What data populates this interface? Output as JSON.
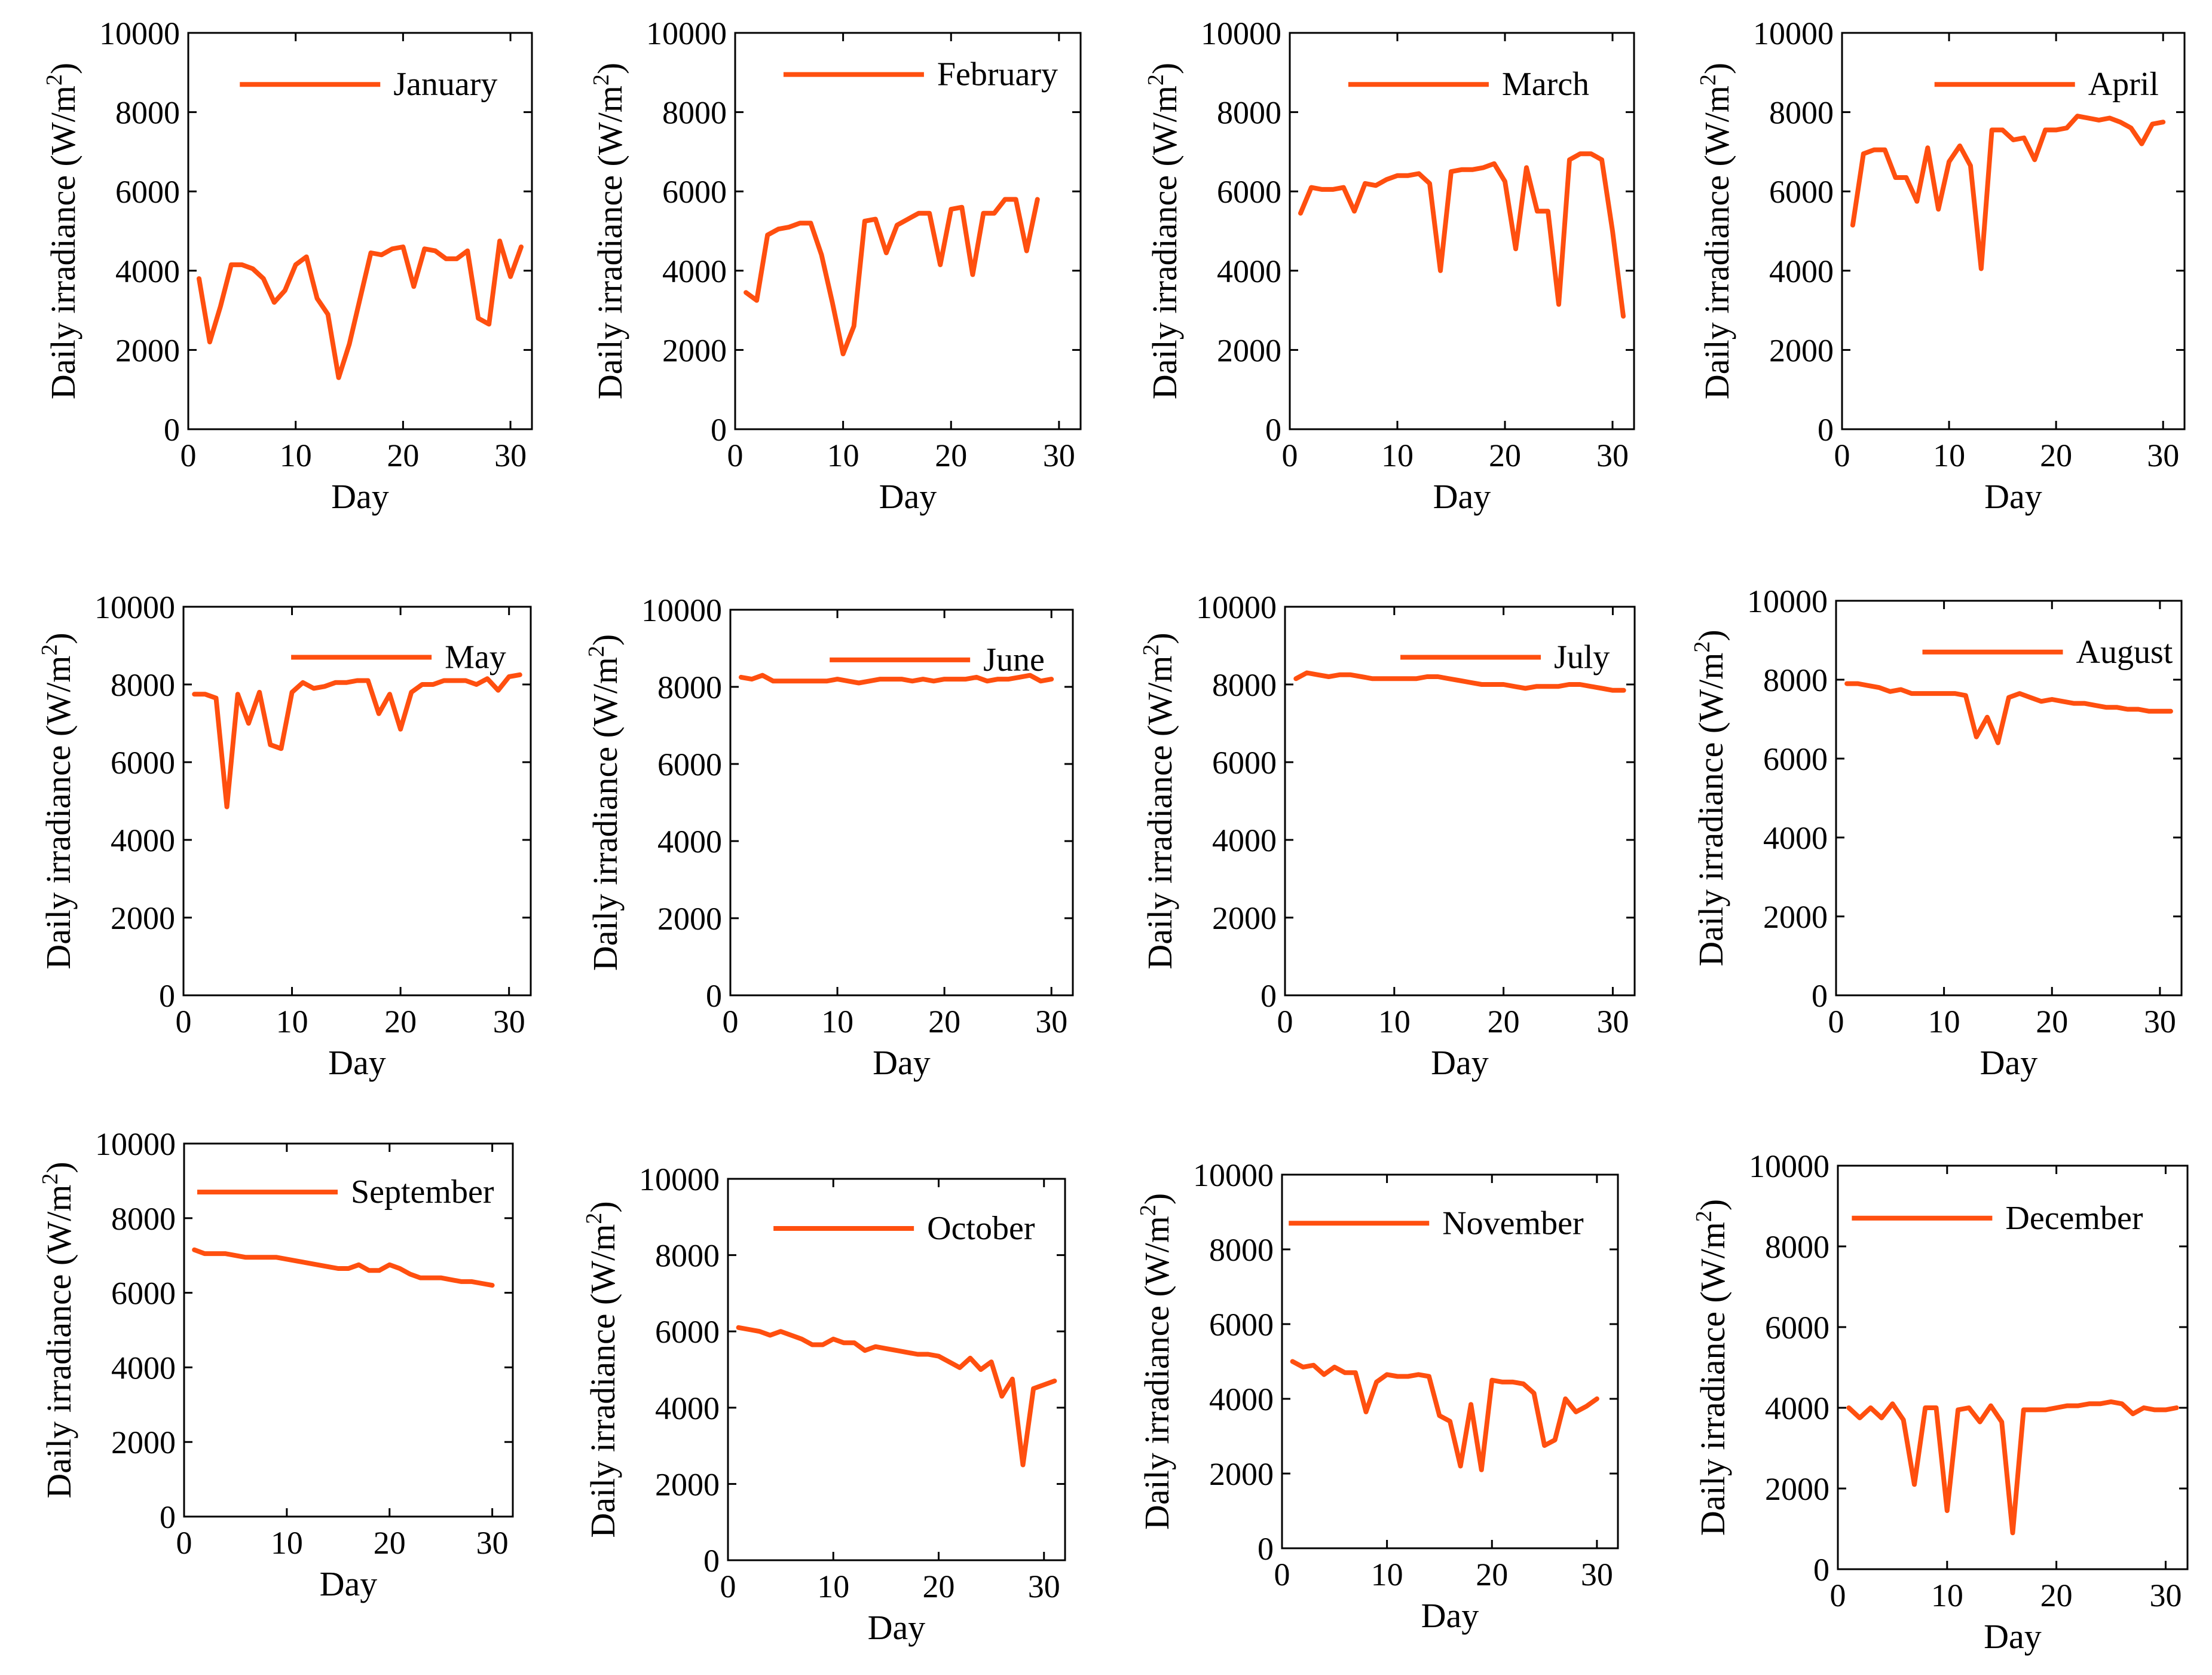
{
  "colors": {
    "series": "#ff4f0f",
    "axis": "#000000"
  },
  "chart_data": [
    {
      "type": "line",
      "title": "",
      "legend": "January",
      "xlabel": "Day",
      "ylabel": "Daily irradiance (W/m",
      "ylabel_sup": "2",
      "ylabel_close": ")",
      "xlim": [
        0,
        32
      ],
      "ylim": [
        0,
        10000
      ],
      "xticks": [
        0,
        10,
        20,
        30
      ],
      "yticks": [
        0,
        2000,
        4000,
        6000,
        8000,
        10000
      ],
      "x": [
        1,
        2,
        3,
        4,
        5,
        6,
        7,
        8,
        9,
        10,
        11,
        12,
        13,
        14,
        15,
        16,
        17,
        18,
        19,
        20,
        21,
        22,
        23,
        24,
        25,
        26,
        27,
        28,
        29,
        30,
        31
      ],
      "y": [
        3800,
        2200,
        3100,
        4150,
        4150,
        4050,
        3800,
        3200,
        3500,
        4150,
        4350,
        3300,
        2900,
        1300,
        2150,
        3300,
        4450,
        4400,
        4550,
        4600,
        3600,
        4550,
        4500,
        4300,
        4300,
        4500,
        2800,
        2650,
        4750,
        3850,
        4600
      ]
    },
    {
      "type": "line",
      "title": "",
      "legend": "February",
      "xlabel": "Day",
      "ylabel": "Daily irradiance (W/m",
      "ylabel_sup": "2",
      "ylabel_close": ")",
      "xlim": [
        0,
        32
      ],
      "ylim": [
        0,
        10000
      ],
      "xticks": [
        0,
        10,
        20,
        30
      ],
      "yticks": [
        0,
        2000,
        4000,
        6000,
        8000,
        10000
      ],
      "x": [
        1,
        2,
        3,
        4,
        5,
        6,
        7,
        8,
        9,
        10,
        11,
        12,
        13,
        14,
        15,
        16,
        17,
        18,
        19,
        20,
        21,
        22,
        23,
        24,
        25,
        26,
        27,
        28
      ],
      "y": [
        3450,
        3250,
        4900,
        5050,
        5100,
        5200,
        5200,
        4400,
        3200,
        1900,
        2600,
        5250,
        5300,
        4450,
        5150,
        5300,
        5450,
        5450,
        4150,
        5550,
        5600,
        3900,
        5450,
        5450,
        5800,
        5800,
        4500,
        5800
      ]
    },
    {
      "type": "line",
      "title": "",
      "legend": "March",
      "xlabel": "Day",
      "ylabel": "Daily irradiance (W/m",
      "ylabel_sup": "2",
      "ylabel_close": ")",
      "xlim": [
        0,
        32
      ],
      "ylim": [
        0,
        10000
      ],
      "xticks": [
        0,
        10,
        20,
        30
      ],
      "yticks": [
        0,
        2000,
        4000,
        6000,
        8000,
        10000
      ],
      "x": [
        1,
        2,
        3,
        4,
        5,
        6,
        7,
        8,
        9,
        10,
        11,
        12,
        13,
        14,
        15,
        16,
        17,
        18,
        19,
        20,
        21,
        22,
        23,
        24,
        25,
        26,
        27,
        28,
        29,
        30,
        31
      ],
      "y": [
        5450,
        6100,
        6050,
        6050,
        6100,
        5500,
        6200,
        6150,
        6300,
        6400,
        6400,
        6450,
        6200,
        4000,
        6500,
        6550,
        6550,
        6600,
        6700,
        6250,
        4550,
        6600,
        5500,
        5500,
        3150,
        6800,
        6950,
        6950,
        6800,
        5000,
        2850
      ]
    },
    {
      "type": "line",
      "title": "",
      "legend": "April",
      "xlabel": "Day",
      "ylabel": "Daily irradiance (W/m",
      "ylabel_sup": "2",
      "ylabel_close": ")",
      "xlim": [
        0,
        32
      ],
      "ylim": [
        0,
        10000
      ],
      "xticks": [
        0,
        10,
        20,
        30
      ],
      "yticks": [
        0,
        2000,
        4000,
        6000,
        8000,
        10000
      ],
      "x": [
        1,
        2,
        3,
        4,
        5,
        6,
        7,
        8,
        9,
        10,
        11,
        12,
        13,
        14,
        15,
        16,
        17,
        18,
        19,
        20,
        21,
        22,
        23,
        24,
        25,
        26,
        27,
        28,
        29,
        30
      ],
      "y": [
        5150,
        6950,
        7050,
        7050,
        6350,
        6350,
        5750,
        7100,
        5550,
        6750,
        7150,
        6650,
        4050,
        7550,
        7550,
        7300,
        7350,
        6800,
        7550,
        7550,
        7600,
        7900,
        7850,
        7800,
        7850,
        7750,
        7600,
        7200,
        7700,
        7750
      ]
    },
    {
      "type": "line",
      "title": "",
      "legend": "May",
      "xlabel": "Day",
      "ylabel": "Daily irradiance (W/m",
      "ylabel_sup": "2",
      "ylabel_close": ")",
      "xlim": [
        0,
        32
      ],
      "ylim": [
        0,
        10000
      ],
      "xticks": [
        0,
        10,
        20,
        30
      ],
      "yticks": [
        0,
        2000,
        4000,
        6000,
        8000,
        10000
      ],
      "x": [
        1,
        2,
        3,
        4,
        5,
        6,
        7,
        8,
        9,
        10,
        11,
        12,
        13,
        14,
        15,
        16,
        17,
        18,
        19,
        20,
        21,
        22,
        23,
        24,
        25,
        26,
        27,
        28,
        29,
        30,
        31
      ],
      "y": [
        7750,
        7750,
        7650,
        4850,
        7750,
        7000,
        7800,
        6450,
        6350,
        7800,
        8050,
        7900,
        7950,
        8050,
        8050,
        8100,
        8100,
        7250,
        7750,
        6850,
        7800,
        8000,
        8000,
        8100,
        8100,
        8100,
        8000,
        8150,
        7850,
        8200,
        8250
      ]
    },
    {
      "type": "line",
      "title": "",
      "legend": "June",
      "xlabel": "Day",
      "ylabel": "Daily irradiance (W/m",
      "ylabel_sup": "2",
      "ylabel_close": ")",
      "xlim": [
        0,
        32
      ],
      "ylim": [
        0,
        10000
      ],
      "xticks": [
        0,
        10,
        20,
        30
      ],
      "yticks": [
        0,
        2000,
        4000,
        6000,
        8000,
        10000
      ],
      "x": [
        1,
        2,
        3,
        4,
        5,
        6,
        7,
        8,
        9,
        10,
        11,
        12,
        13,
        14,
        15,
        16,
        17,
        18,
        19,
        20,
        21,
        22,
        23,
        24,
        25,
        26,
        27,
        28,
        29,
        30
      ],
      "y": [
        8250,
        8200,
        8300,
        8150,
        8150,
        8150,
        8150,
        8150,
        8150,
        8200,
        8150,
        8100,
        8150,
        8200,
        8200,
        8200,
        8150,
        8200,
        8150,
        8200,
        8200,
        8200,
        8250,
        8150,
        8200,
        8200,
        8250,
        8300,
        8150,
        8200
      ]
    },
    {
      "type": "line",
      "title": "",
      "legend": "July",
      "xlabel": "Day",
      "ylabel": "Daily irradiance (W/m",
      "ylabel_sup": "2",
      "ylabel_close": ")",
      "xlim": [
        0,
        32
      ],
      "ylim": [
        0,
        10000
      ],
      "xticks": [
        0,
        10,
        20,
        30
      ],
      "yticks": [
        0,
        2000,
        4000,
        6000,
        8000,
        10000
      ],
      "x": [
        1,
        2,
        3,
        4,
        5,
        6,
        7,
        8,
        9,
        10,
        11,
        12,
        13,
        14,
        15,
        16,
        17,
        18,
        19,
        20,
        21,
        22,
        23,
        24,
        25,
        26,
        27,
        28,
        29,
        30,
        31
      ],
      "y": [
        8150,
        8300,
        8250,
        8200,
        8250,
        8250,
        8200,
        8150,
        8150,
        8150,
        8150,
        8150,
        8200,
        8200,
        8150,
        8100,
        8050,
        8000,
        8000,
        8000,
        7950,
        7900,
        7950,
        7950,
        7950,
        8000,
        8000,
        7950,
        7900,
        7850,
        7850
      ]
    },
    {
      "type": "line",
      "title": "",
      "legend": "August",
      "xlabel": "Day",
      "ylabel": "Daily irradiance (W/m",
      "ylabel_sup": "2",
      "ylabel_close": ")",
      "xlim": [
        0,
        32
      ],
      "ylim": [
        0,
        10000
      ],
      "xticks": [
        0,
        10,
        20,
        30
      ],
      "yticks": [
        0,
        2000,
        4000,
        6000,
        8000,
        10000
      ],
      "x": [
        1,
        2,
        3,
        4,
        5,
        6,
        7,
        8,
        9,
        10,
        11,
        12,
        13,
        14,
        15,
        16,
        17,
        18,
        19,
        20,
        21,
        22,
        23,
        24,
        25,
        26,
        27,
        28,
        29,
        30,
        31
      ],
      "y": [
        7900,
        7900,
        7850,
        7800,
        7700,
        7750,
        7650,
        7650,
        7650,
        7650,
        7650,
        7600,
        6550,
        7050,
        6400,
        7550,
        7650,
        7550,
        7450,
        7500,
        7450,
        7400,
        7400,
        7350,
        7300,
        7300,
        7250,
        7250,
        7200,
        7200,
        7200
      ]
    },
    {
      "type": "line",
      "title": "",
      "legend": "September",
      "xlabel": "Day",
      "ylabel": "Daily irradiance (W/m",
      "ylabel_sup": "2",
      "ylabel_close": ")",
      "xlim": [
        0,
        32
      ],
      "ylim": [
        0,
        10000
      ],
      "xticks": [
        0,
        10,
        20,
        30
      ],
      "yticks": [
        0,
        2000,
        4000,
        6000,
        8000,
        10000
      ],
      "x": [
        1,
        2,
        3,
        4,
        5,
        6,
        7,
        8,
        9,
        10,
        11,
        12,
        13,
        14,
        15,
        16,
        17,
        18,
        19,
        20,
        21,
        22,
        23,
        24,
        25,
        26,
        27,
        28,
        29,
        30
      ],
      "y": [
        7150,
        7050,
        7050,
        7050,
        7000,
        6950,
        6950,
        6950,
        6950,
        6900,
        6850,
        6800,
        6750,
        6700,
        6650,
        6650,
        6750,
        6600,
        6600,
        6750,
        6650,
        6500,
        6400,
        6400,
        6400,
        6350,
        6300,
        6300,
        6250,
        6200
      ]
    },
    {
      "type": "line",
      "title": "",
      "legend": "October",
      "xlabel": "Day",
      "ylabel": "Daily irradiance (W/m",
      "ylabel_sup": "2",
      "ylabel_close": ")",
      "xlim": [
        0,
        32
      ],
      "ylim": [
        0,
        10000
      ],
      "xticks": [
        0,
        10,
        20,
        30
      ],
      "yticks": [
        0,
        2000,
        4000,
        6000,
        8000,
        10000
      ],
      "x": [
        1,
        2,
        3,
        4,
        5,
        6,
        7,
        8,
        9,
        10,
        11,
        12,
        13,
        14,
        15,
        16,
        17,
        18,
        19,
        20,
        21,
        22,
        23,
        24,
        25,
        26,
        27,
        28,
        29,
        30,
        31
      ],
      "y": [
        6100,
        6050,
        6000,
        5900,
        6000,
        5900,
        5800,
        5650,
        5650,
        5800,
        5700,
        5700,
        5500,
        5600,
        5550,
        5500,
        5450,
        5400,
        5400,
        5350,
        5200,
        5050,
        5300,
        5000,
        5200,
        4300,
        4750,
        2500,
        4500,
        4600,
        4700
      ]
    },
    {
      "type": "line",
      "title": "",
      "legend": "November",
      "xlabel": "Day",
      "ylabel": "Daily irradiance (W/m",
      "ylabel_sup": "2",
      "ylabel_close": ")",
      "xlim": [
        0,
        32
      ],
      "ylim": [
        0,
        10000
      ],
      "xticks": [
        0,
        10,
        20,
        30
      ],
      "yticks": [
        0,
        2000,
        4000,
        6000,
        8000,
        10000
      ],
      "x": [
        1,
        2,
        3,
        4,
        5,
        6,
        7,
        8,
        9,
        10,
        11,
        12,
        13,
        14,
        15,
        16,
        17,
        18,
        19,
        20,
        21,
        22,
        23,
        24,
        25,
        26,
        27,
        28,
        29,
        30
      ],
      "y": [
        5000,
        4850,
        4900,
        4650,
        4850,
        4700,
        4700,
        3650,
        4450,
        4650,
        4600,
        4600,
        4650,
        4600,
        3550,
        3400,
        2200,
        3850,
        2100,
        4500,
        4450,
        4450,
        4400,
        4150,
        2750,
        2900,
        4000,
        3650,
        3800,
        4000
      ]
    },
    {
      "type": "line",
      "title": "",
      "legend": "December",
      "xlabel": "Day",
      "ylabel": "Daily irradiance (W/m",
      "ylabel_sup": "2",
      "ylabel_close": ")",
      "xlim": [
        0,
        32
      ],
      "ylim": [
        0,
        10000
      ],
      "xticks": [
        0,
        10,
        20,
        30
      ],
      "yticks": [
        0,
        2000,
        4000,
        6000,
        8000,
        10000
      ],
      "x": [
        1,
        2,
        3,
        4,
        5,
        6,
        7,
        8,
        9,
        10,
        11,
        12,
        13,
        14,
        15,
        16,
        17,
        18,
        19,
        20,
        21,
        22,
        23,
        24,
        25,
        26,
        27,
        28,
        29,
        30,
        31
      ],
      "y": [
        4000,
        3750,
        4000,
        3750,
        4100,
        3700,
        2100,
        4000,
        4000,
        1450,
        3950,
        4000,
        3650,
        4050,
        3650,
        900,
        3950,
        3950,
        3950,
        4000,
        4050,
        4050,
        4100,
        4100,
        4150,
        4100,
        3850,
        4000,
        3950,
        3950,
        4000
      ]
    }
  ]
}
